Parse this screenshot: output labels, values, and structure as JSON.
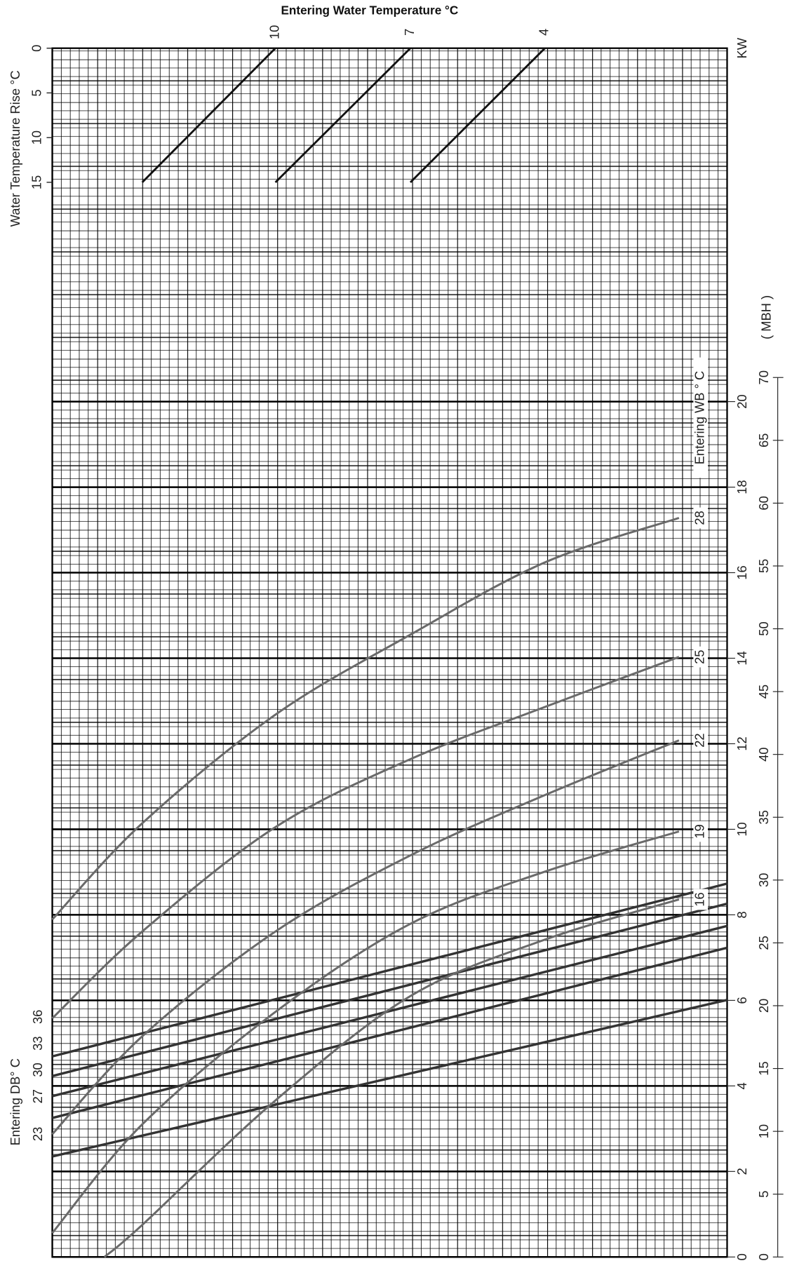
{
  "chart_data": {
    "type": "nomogram",
    "title": "Entering Water Temperature °C",
    "xlim": [
      0,
      15
    ],
    "water_temperature": {
      "color": "#111111",
      "lines": [
        {
          "name": "10",
          "x": [
            2,
            4.96
          ],
          "values": [
            15,
            0
          ]
        },
        {
          "name": "7",
          "x": [
            4.96,
            7.96
          ],
          "values": [
            15,
            0
          ]
        },
        {
          "name": "4",
          "x": [
            7.96,
            10.95
          ],
          "values": [
            15,
            0
          ]
        }
      ]
    },
    "rise_axis": {
      "label": "Water Temperature Rise  °C",
      "lim": [
        0,
        15
      ],
      "ticks": [
        0,
        5,
        10,
        15
      ]
    },
    "kw_axis": {
      "label": "KW",
      "lim": [
        0,
        20
      ],
      "ticks": [
        0,
        2,
        4,
        6,
        8,
        10,
        12,
        14,
        16,
        18,
        20
      ]
    },
    "mbh_axis": {
      "label": "( MBH )",
      "lim": [
        0,
        70
      ],
      "ticks": [
        0,
        5,
        10,
        15,
        20,
        25,
        30,
        35,
        40,
        45,
        50,
        55,
        60,
        65,
        70
      ]
    },
    "wb": {
      "label": "Entering WB ° C",
      "color": "#6a6a6a",
      "series": [
        {
          "name": "16",
          "x": [
            1.16,
            2,
            4.96,
            7.96,
            10.95,
            13.93
          ],
          "values": [
            0,
            0.75,
            3.66,
            6.1,
            7.42,
            8.36
          ]
        },
        {
          "name": "19",
          "x": [
            0,
            2,
            4.96,
            7.96,
            10.95,
            13.93
          ],
          "values": [
            0.56,
            3.1,
            5.73,
            7.79,
            9.01,
            9.95
          ]
        },
        {
          "name": "22",
          "x": [
            0,
            2,
            4.96,
            7.96,
            10.95,
            13.93
          ],
          "values": [
            2.87,
            5.16,
            7.61,
            9.39,
            10.8,
            12.08
          ]
        },
        {
          "name": "25",
          "x": [
            0,
            2,
            4.96,
            7.96,
            10.95,
            13.93
          ],
          "values": [
            5.58,
            7.61,
            10.05,
            11.64,
            12.86,
            14.03
          ]
        },
        {
          "name": "28",
          "x": [
            0,
            2,
            4.96,
            7.96,
            10.95,
            13.93
          ],
          "values": [
            7.89,
            10.14,
            12.68,
            14.55,
            16.24,
            17.28
          ]
        }
      ]
    },
    "db": {
      "label": "Entering DB° C",
      "color": "#333333",
      "series": [
        {
          "name": "23",
          "x": [
            0,
            15
          ],
          "values": [
            2.35,
            6.01
          ]
        },
        {
          "name": "27",
          "x": [
            0,
            15
          ],
          "values": [
            3.25,
            7.23
          ]
        },
        {
          "name": "30",
          "x": [
            0,
            15
          ],
          "values": [
            3.76,
            7.74
          ]
        },
        {
          "name": "33",
          "x": [
            0,
            15
          ],
          "values": [
            4.23,
            8.26
          ]
        },
        {
          "name": "36",
          "x": [
            0,
            15
          ],
          "values": [
            4.69,
            8.73
          ]
        }
      ]
    }
  }
}
